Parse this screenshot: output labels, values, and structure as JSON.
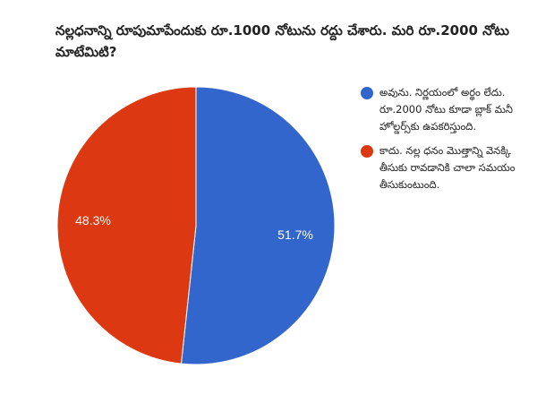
{
  "title": "నల్లధనాన్ని రూపుమాపేందుకు రూ.1000 నోటును రద్దు చేశారు. మరి రూ.2000 నోటు మాటేమిటి?",
  "legend": [
    {
      "label": "అవును. నిర్ణయంలో అర్థం లేదు. రూ.2000 నోటు కూడా బ్లాక్ మనీ హోల్డర్స్‌కు ఉపకరిస్తుంది.",
      "color": "#3366cc"
    },
    {
      "label": "కాదు. నల్ల ధనం మొత్తాన్ని వెనక్కి తీసుకు రావడానికి చాలా సమయం తీసుకుంటుంది.",
      "color": "#dc3912"
    }
  ],
  "slices": [
    {
      "label": "51.7%",
      "value": 51.7,
      "color": "#3366cc"
    },
    {
      "label": "48.3%",
      "value": 48.3,
      "color": "#dc3912"
    }
  ],
  "chart_data": {
    "type": "pie",
    "title": "నల్లధనాన్ని రూపుమాపేందుకు రూ.1000 నోటును రద్దు చేశారు. మరి రూ.2000 నోటు మాటేమిటి?",
    "categories": [
      "అవును. నిర్ణయంలో అర్థం లేదు. రూ.2000 నోటు కూడా బ్లాక్ మనీ హోల్డర్స్‌కు ఉపకరిస్తుంది.",
      "కాదు. నల్ల ధనం మొత్తాన్ని వెనక్కి తీసుకు రావడానికి చాలా సమయం తీసుకుంటుంది."
    ],
    "values": [
      51.7,
      48.3
    ],
    "colors": [
      "#3366cc",
      "#dc3912"
    ],
    "value_labels": [
      "51.7%",
      "48.3%"
    ],
    "legend_position": "right",
    "start_angle": "top, clockwise"
  }
}
